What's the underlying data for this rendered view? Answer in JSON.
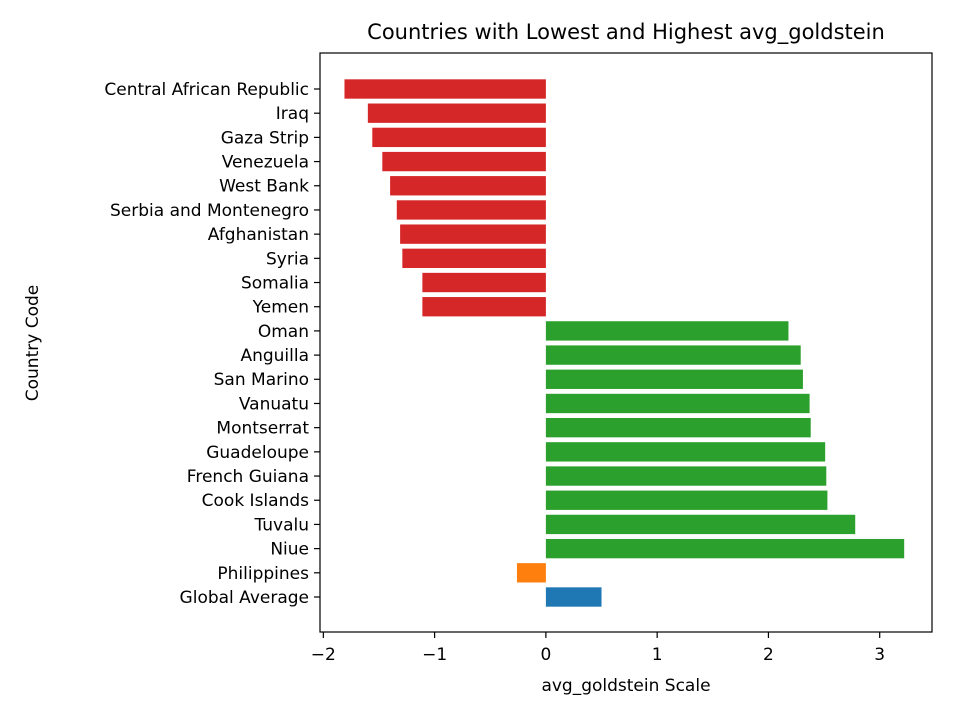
{
  "chart_data": {
    "type": "bar",
    "orientation": "horizontal",
    "title": "Countries with Lowest and Highest avg_goldstein",
    "xlabel": "avg_goldstein Scale",
    "ylabel": "Country Code",
    "xlim": [
      -2.03,
      3.47
    ],
    "xticks": [
      -2,
      -1,
      0,
      1,
      2,
      3
    ],
    "xtick_labels": [
      "−2",
      "−1",
      "0",
      "1",
      "2",
      "3"
    ],
    "grid": false,
    "legend": "none",
    "categories": [
      "Central African Republic",
      "Iraq",
      "Gaza Strip",
      "Venezuela",
      "West Bank",
      "Serbia and Montenegro",
      "Afghanistan",
      "Syria",
      "Somalia",
      "Yemen",
      "Oman",
      "Anguilla",
      "San Marino",
      "Vanuatu",
      "Montserrat",
      "Guadeloupe",
      "French Guiana",
      "Cook Islands",
      "Tuvalu",
      "Niue",
      "Philippines",
      "Global Average"
    ],
    "values": [
      -1.81,
      -1.6,
      -1.56,
      -1.47,
      -1.4,
      -1.34,
      -1.31,
      -1.29,
      -1.11,
      -1.11,
      2.18,
      2.29,
      2.31,
      2.37,
      2.38,
      2.51,
      2.52,
      2.53,
      2.78,
      3.22,
      -0.26,
      0.5
    ],
    "bar_colors": [
      "#d62728",
      "#d62728",
      "#d62728",
      "#d62728",
      "#d62728",
      "#d62728",
      "#d62728",
      "#d62728",
      "#d62728",
      "#d62728",
      "#2ca02c",
      "#2ca02c",
      "#2ca02c",
      "#2ca02c",
      "#2ca02c",
      "#2ca02c",
      "#2ca02c",
      "#2ca02c",
      "#2ca02c",
      "#2ca02c",
      "#ff7f0e",
      "#1f77b4"
    ]
  }
}
